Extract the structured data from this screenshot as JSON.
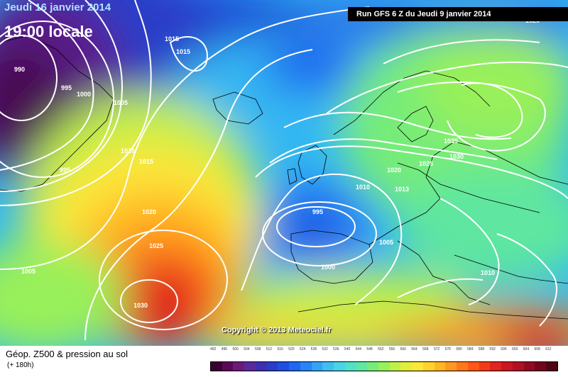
{
  "header": {
    "date_label": "Jeudi 16 janvier 2014",
    "time_label": "19:00 locale",
    "run_label": "Run GFS 6 Z du Jeudi 9 janvier 2014"
  },
  "copyright": "Copyright © 2013 Meteociel.fr",
  "footer": {
    "title": "Géop. Z500 & pression au sol",
    "subtitle": "(+ 180h)"
  },
  "legend": {
    "ticks": [
      "492",
      "496",
      "500",
      "504",
      "508",
      "512",
      "516",
      "520",
      "524",
      "528",
      "532",
      "536",
      "540",
      "544",
      "548",
      "552",
      "556",
      "560",
      "564",
      "568",
      "572",
      "576",
      "580",
      "584",
      "588",
      "592",
      "596",
      "600",
      "604",
      "608",
      "612"
    ],
    "colors": [
      "#3a0032",
      "#5a0a55",
      "#6e1a7a",
      "#5a2a9a",
      "#3c2fb0",
      "#2a3cc8",
      "#1f4ee0",
      "#1f66f0",
      "#2a84f5",
      "#36a2f5",
      "#41bdf0",
      "#48d4e6",
      "#52e0c8",
      "#5fe6a0",
      "#76ec78",
      "#98f05a",
      "#bff048",
      "#e2ee3c",
      "#fde63a",
      "#ffd22c",
      "#ffb624",
      "#ff9820",
      "#ff781c",
      "#ff5818",
      "#f53a1a",
      "#e0241e",
      "#c81622",
      "#b01026",
      "#900a22",
      "#70061c",
      "#500414"
    ]
  },
  "pressure_labels": [
    {
      "text": "990"
    },
    {
      "text": "995"
    },
    {
      "text": "1000"
    },
    {
      "text": "1005"
    },
    {
      "text": "1010"
    },
    {
      "text": "1015"
    },
    {
      "text": "1015"
    },
    {
      "text": "995"
    },
    {
      "text": "1015"
    },
    {
      "text": "1020"
    },
    {
      "text": "1025"
    },
    {
      "text": "1030"
    },
    {
      "text": "1005"
    },
    {
      "text": "995"
    },
    {
      "text": "1000"
    },
    {
      "text": "1005"
    },
    {
      "text": "1010"
    },
    {
      "text": "1013"
    },
    {
      "text": "1020"
    },
    {
      "text": "1025"
    },
    {
      "text": "1030"
    },
    {
      "text": "1035"
    },
    {
      "text": "1010"
    },
    {
      "text": "1020"
    }
  ]
}
